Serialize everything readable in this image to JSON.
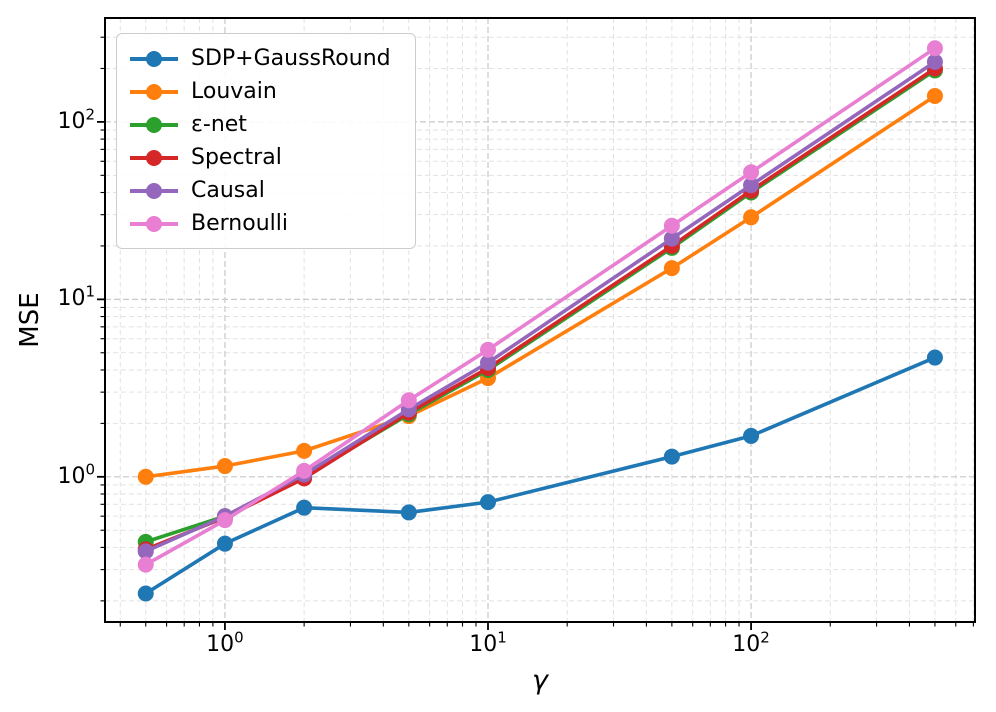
{
  "chart_data": {
    "type": "line",
    "title": "",
    "xlabel": "γ",
    "ylabel": "MSE",
    "x_scale": "log",
    "y_scale": "log",
    "x": [
      0.5,
      1,
      2,
      5,
      10,
      50,
      100,
      500
    ],
    "series": [
      {
        "name": "SDP+GaussRound",
        "color": "#1f77b4",
        "values": [
          0.22,
          0.42,
          0.67,
          0.63,
          0.72,
          1.3,
          1.7,
          4.7
        ]
      },
      {
        "name": "Louvain",
        "color": "#ff7f0e",
        "values": [
          1.0,
          1.15,
          1.4,
          2.2,
          3.6,
          15,
          29,
          140
        ]
      },
      {
        "name": "ε-net",
        "color": "#2ca02c",
        "values": [
          0.43,
          0.6,
          1.0,
          2.25,
          4.0,
          19.5,
          40,
          195
        ]
      },
      {
        "name": "Spectral",
        "color": "#d62728",
        "values": [
          0.39,
          0.59,
          0.98,
          2.3,
          4.1,
          20,
          41,
          200
        ]
      },
      {
        "name": "Causal",
        "color": "#9467bd",
        "values": [
          0.38,
          0.6,
          1.03,
          2.4,
          4.4,
          22,
          44,
          218
        ]
      },
      {
        "name": "Bernoulli",
        "color": "#e87fd2",
        "values": [
          0.32,
          0.57,
          1.08,
          2.7,
          5.2,
          26,
          52,
          260
        ]
      }
    ],
    "xlim": [
      0.35,
      710
    ],
    "ylim": [
      0.152,
      385
    ],
    "x_major_ticks": [
      1,
      10,
      100
    ],
    "y_major_ticks": [
      1,
      10,
      100
    ],
    "x_tick_labels": [
      "10⁰",
      "10¹",
      "10²"
    ],
    "y_tick_labels": [
      "10⁰",
      "10¹",
      "10²"
    ],
    "grid": {
      "major": true,
      "minor": true,
      "style": "dashed"
    },
    "legend_position": "upper left",
    "legend_entries": [
      "SDP+GaussRound",
      "Louvain",
      "ε-net",
      "Spectral",
      "Causal",
      "Bernoulli"
    ]
  },
  "style_colors": {
    "spine": "#000000",
    "tick": "#000000",
    "grid_major": "#c9c9c9",
    "grid_minor": "#e2e2e2",
    "background": "#ffffff"
  }
}
